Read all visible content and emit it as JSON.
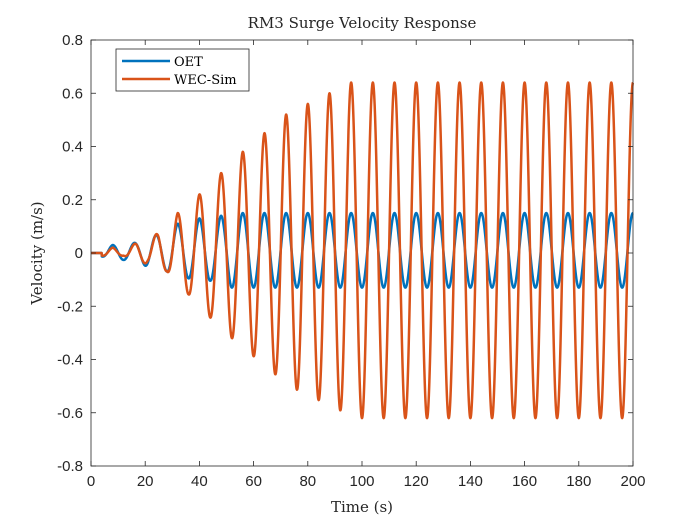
{
  "chart_data": {
    "type": "line",
    "title": "RM3 Surge Velocity Response",
    "xlabel": "Time (s)",
    "ylabel": "Velocity (m/s)",
    "xlim": [
      0,
      200
    ],
    "ylim": [
      -0.8,
      0.8
    ],
    "xticks": [
      0,
      20,
      40,
      60,
      80,
      100,
      120,
      140,
      160,
      180,
      200
    ],
    "yticks": [
      -0.8,
      -0.6,
      -0.4,
      -0.2,
      0,
      0.2,
      0.4,
      0.6,
      0.8
    ],
    "xtick_labels": [
      "0",
      "20",
      "40",
      "60",
      "80",
      "100",
      "120",
      "140",
      "160",
      "180",
      "200"
    ],
    "ytick_labels": [
      "-0.8",
      "-0.6",
      "-0.4",
      "-0.2",
      "0",
      "0.2",
      "0.4",
      "0.6",
      "0.8"
    ],
    "grid": false,
    "legend_position": "top-left",
    "series": [
      {
        "name": "OET",
        "color": "#0072BD",
        "line_width": 2.5,
        "period_s": 8.0,
        "steady_amplitude_peak": 0.15,
        "steady_amplitude_trough": -0.13,
        "steady_state_from_s": 50,
        "sample_points": [
          {
            "x": 0,
            "y": 0
          },
          {
            "x": 8,
            "y": 0.03
          },
          {
            "x": 12,
            "y": -0.03
          },
          {
            "x": 17,
            "y": 0.04
          },
          {
            "x": 21,
            "y": -0.06
          },
          {
            "x": 25,
            "y": 0.07
          },
          {
            "x": 28,
            "y": -0.08
          },
          {
            "x": 32,
            "y": 0.11
          },
          {
            "x": 36,
            "y": -0.11
          },
          {
            "x": 40,
            "y": 0.13
          },
          {
            "x": 44,
            "y": -0.12
          },
          {
            "x": 48,
            "y": 0.14
          },
          {
            "x": 52,
            "y": -0.13
          },
          {
            "x": 56,
            "y": 0.15
          },
          {
            "x": 60,
            "y": -0.13
          }
        ]
      },
      {
        "name": "WEC-Sim",
        "color": "#D95319",
        "line_width": 2.5,
        "period_s": 8.0,
        "steady_amplitude_peak": 0.64,
        "steady_amplitude_trough": -0.62,
        "steady_state_from_s": 95,
        "sample_points": [
          {
            "x": 0,
            "y": 0
          },
          {
            "x": 8,
            "y": 0.02
          },
          {
            "x": 12,
            "y": -0.01
          },
          {
            "x": 17,
            "y": 0.04
          },
          {
            "x": 21,
            "y": -0.04
          },
          {
            "x": 25,
            "y": 0.08
          },
          {
            "x": 28,
            "y": -0.07
          },
          {
            "x": 32,
            "y": 0.15
          },
          {
            "x": 36,
            "y": -0.16
          },
          {
            "x": 40,
            "y": 0.22
          },
          {
            "x": 44,
            "y": -0.25
          },
          {
            "x": 48,
            "y": 0.3
          },
          {
            "x": 52,
            "y": -0.33
          },
          {
            "x": 56,
            "y": 0.38
          },
          {
            "x": 60,
            "y": -0.4
          },
          {
            "x": 64,
            "y": 0.45
          },
          {
            "x": 68,
            "y": -0.47
          },
          {
            "x": 72,
            "y": 0.52
          },
          {
            "x": 76,
            "y": -0.53
          },
          {
            "x": 80,
            "y": 0.56
          },
          {
            "x": 84,
            "y": -0.57
          },
          {
            "x": 88,
            "y": 0.6
          },
          {
            "x": 92,
            "y": -0.61
          },
          {
            "x": 96,
            "y": 0.63
          },
          {
            "x": 100,
            "y": -0.62
          },
          {
            "x": 104,
            "y": 0.64
          },
          {
            "x": 200,
            "y": 0.64
          }
        ]
      }
    ]
  }
}
